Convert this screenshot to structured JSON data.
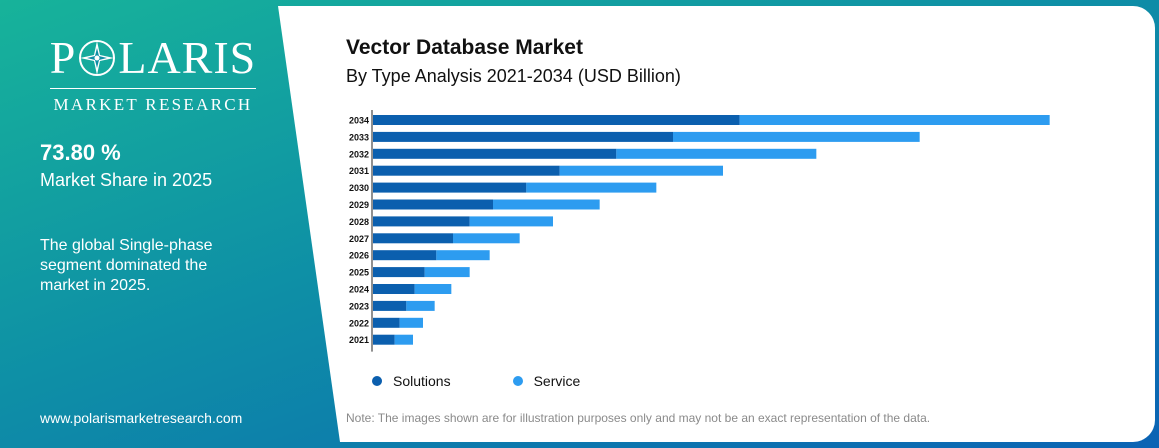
{
  "brand": {
    "name": "POLARIS",
    "subtitle": "MARKET RESEARCH",
    "website": "www.polarismarketresearch.com"
  },
  "highlight": {
    "value": "73.80 %",
    "label": "Market Share in 2025",
    "description": "The global Single-phase segment dominated the market in 2025."
  },
  "colors": {
    "solutions": "#0b5fae",
    "service": "#2d9cf0",
    "accent": "#17b39a"
  },
  "note": "Note: The images shown are for illustration purposes only and may not be an exact representation of the data.",
  "chart_data": {
    "type": "bar",
    "orientation": "horizontal",
    "stacked": true,
    "title": "Vector Database Market",
    "subtitle": "By Type Analysis 2021-2034 (USD Billion)",
    "categories": [
      "2034",
      "2033",
      "2032",
      "2031",
      "2030",
      "2029",
      "2028",
      "2027",
      "2026",
      "2025",
      "2024",
      "2023",
      "2022",
      "2021"
    ],
    "series": [
      {
        "name": "Solutions",
        "values": [
          11.0,
          9.0,
          7.3,
          5.6,
          4.6,
          3.6,
          2.9,
          2.4,
          1.9,
          1.55,
          1.25,
          1.0,
          0.8,
          0.65
        ]
      },
      {
        "name": "Service",
        "values": [
          9.3,
          7.4,
          6.0,
          4.9,
          3.9,
          3.2,
          2.5,
          2.0,
          1.6,
          1.35,
          1.1,
          0.85,
          0.7,
          0.55
        ]
      }
    ],
    "xlim": [
      0,
      21
    ],
    "grid": false,
    "legend_position": "bottom-left"
  }
}
